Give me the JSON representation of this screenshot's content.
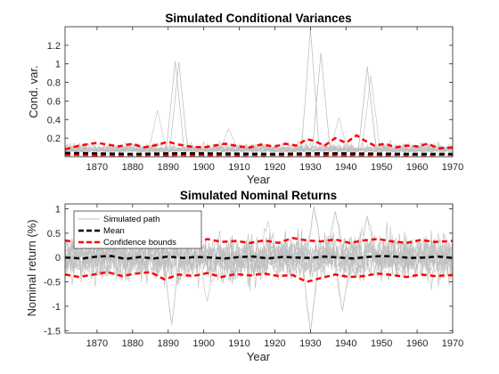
{
  "chart_data": [
    {
      "type": "line",
      "title": "Simulated Conditional Variances",
      "xlabel": "Year",
      "ylabel": "Cond. var.",
      "xlim": [
        1861,
        1970
      ],
      "ylim": [
        0,
        1.4
      ],
      "xticks": [
        "1870",
        "1880",
        "1890",
        "1900",
        "1910",
        "1920",
        "1930",
        "1940",
        "1950",
        "1960",
        "1970"
      ],
      "yticks": [
        "0.2",
        "0.4",
        "0.6",
        "0.8",
        "1",
        "1.2"
      ],
      "series": [
        {
          "role": "simulated-paths",
          "color": "#bfbfbf",
          "base_level": 0.05,
          "noise_amplitude": 0.07,
          "spikes": [
            {
              "x": 1892,
              "y": 1.03
            },
            {
              "x": 1893,
              "y": 1.02
            },
            {
              "x": 1930,
              "y": 1.38
            },
            {
              "x": 1933,
              "y": 1.12
            },
            {
              "x": 1946,
              "y": 0.97
            },
            {
              "x": 1947,
              "y": 0.87
            },
            {
              "x": 1938,
              "y": 0.42
            },
            {
              "x": 1907,
              "y": 0.3
            },
            {
              "x": 1887,
              "y": 0.5
            }
          ]
        },
        {
          "name": "Mean",
          "color": "#000000",
          "x": [
            1861,
            1870,
            1880,
            1890,
            1900,
            1910,
            1920,
            1930,
            1940,
            1950,
            1960,
            1970
          ],
          "y": [
            0.04,
            0.035,
            0.03,
            0.035,
            0.035,
            0.033,
            0.03,
            0.035,
            0.035,
            0.033,
            0.03,
            0.03
          ]
        },
        {
          "name": "Confidence bounds",
          "color": "#ff0000",
          "x": [
            1861,
            1865,
            1870,
            1873,
            1876,
            1880,
            1883,
            1886,
            1890,
            1893,
            1896,
            1900,
            1903,
            1906,
            1910,
            1913,
            1916,
            1920,
            1923,
            1926,
            1929,
            1931,
            1934,
            1937,
            1940,
            1943,
            1945,
            1948,
            1951,
            1954,
            1957,
            1960,
            1963,
            1966,
            1970
          ],
          "upper": [
            0.08,
            0.12,
            0.15,
            0.13,
            0.11,
            0.14,
            0.1,
            0.12,
            0.16,
            0.13,
            0.11,
            0.1,
            0.12,
            0.14,
            0.11,
            0.1,
            0.13,
            0.11,
            0.14,
            0.12,
            0.19,
            0.17,
            0.12,
            0.2,
            0.15,
            0.23,
            0.18,
            0.12,
            0.14,
            0.1,
            0.12,
            0.11,
            0.14,
            0.09,
            0.1
          ],
          "lower": [
            0.02,
            0.02,
            0.015,
            0.02,
            0.015,
            0.02,
            0.015,
            0.02,
            0.015,
            0.02,
            0.015,
            0.02,
            0.015,
            0.02,
            0.015,
            0.02,
            0.015,
            0.02,
            0.015,
            0.02,
            0.015,
            0.02,
            0.015,
            0.02,
            0.015,
            0.02,
            0.015,
            0.02,
            0.015,
            0.02,
            0.015,
            0.02,
            0.015,
            0.02,
            0.02
          ]
        }
      ],
      "grid": false
    },
    {
      "type": "line",
      "title": "Simulated Nominal Returns",
      "xlabel": "Year",
      "ylabel": "Nominal return (%)",
      "xlim": [
        1861,
        1970
      ],
      "ylim": [
        -1.55,
        1.1
      ],
      "xticks": [
        "1870",
        "1880",
        "1890",
        "1900",
        "1910",
        "1920",
        "1930",
        "1940",
        "1950",
        "1960",
        "1970"
      ],
      "yticks": [
        "-1.5",
        "-1",
        "-0.5",
        "0",
        "0.5",
        "1"
      ],
      "legend": {
        "position": "top-left",
        "entries": [
          "Simulated path",
          "Mean",
          "Confidence bounds"
        ]
      },
      "series": [
        {
          "name": "Simulated path",
          "color": "#bfbfbf",
          "noise_amplitude": 0.45,
          "extremes": [
            {
              "x": 1891,
              "y": -1.38
            },
            {
              "x": 1930,
              "y": -1.52
            },
            {
              "x": 1931,
              "y": 1.05
            },
            {
              "x": 1937,
              "y": 0.95
            },
            {
              "x": 1939,
              "y": -1.1
            },
            {
              "x": 1946,
              "y": 0.85
            },
            {
              "x": 1901,
              "y": -0.9
            },
            {
              "x": 1918,
              "y": 0.75
            }
          ]
        },
        {
          "name": "Mean",
          "color": "#000000",
          "x": [
            1861,
            1866,
            1870,
            1874,
            1878,
            1882,
            1886,
            1890,
            1894,
            1898,
            1902,
            1906,
            1910,
            1914,
            1918,
            1922,
            1926,
            1930,
            1934,
            1938,
            1942,
            1946,
            1950,
            1954,
            1958,
            1962,
            1966,
            1970
          ],
          "y": [
            0.0,
            -0.02,
            0.02,
            0.03,
            -0.03,
            0.01,
            -0.02,
            0.02,
            -0.01,
            0.01,
            0.0,
            -0.02,
            0.01,
            0.02,
            -0.02,
            0.01,
            0.0,
            -0.01,
            0.02,
            0.0,
            -0.02,
            0.01,
            0.03,
            0.02,
            -0.01,
            0.0,
            0.02,
            -0.01
          ]
        },
        {
          "name": "Confidence bounds",
          "color": "#ff0000",
          "x": [
            1861,
            1865,
            1869,
            1873,
            1877,
            1881,
            1885,
            1889,
            1893,
            1897,
            1901,
            1905,
            1909,
            1913,
            1917,
            1921,
            1925,
            1929,
            1933,
            1937,
            1941,
            1945,
            1949,
            1953,
            1957,
            1961,
            1965,
            1970
          ],
          "upper": [
            0.35,
            0.3,
            0.33,
            0.3,
            0.28,
            0.32,
            0.27,
            0.35,
            0.3,
            0.26,
            0.38,
            0.32,
            0.34,
            0.3,
            0.35,
            0.3,
            0.4,
            0.35,
            0.33,
            0.37,
            0.3,
            0.35,
            0.38,
            0.33,
            0.3,
            0.36,
            0.32,
            0.34
          ],
          "lower": [
            -0.35,
            -0.4,
            -0.35,
            -0.3,
            -0.38,
            -0.33,
            -0.3,
            -0.45,
            -0.35,
            -0.38,
            -0.32,
            -0.4,
            -0.34,
            -0.37,
            -0.33,
            -0.38,
            -0.36,
            -0.5,
            -0.42,
            -0.35,
            -0.4,
            -0.38,
            -0.33,
            -0.36,
            -0.4,
            -0.35,
            -0.38,
            -0.36
          ]
        }
      ],
      "grid": false
    }
  ]
}
